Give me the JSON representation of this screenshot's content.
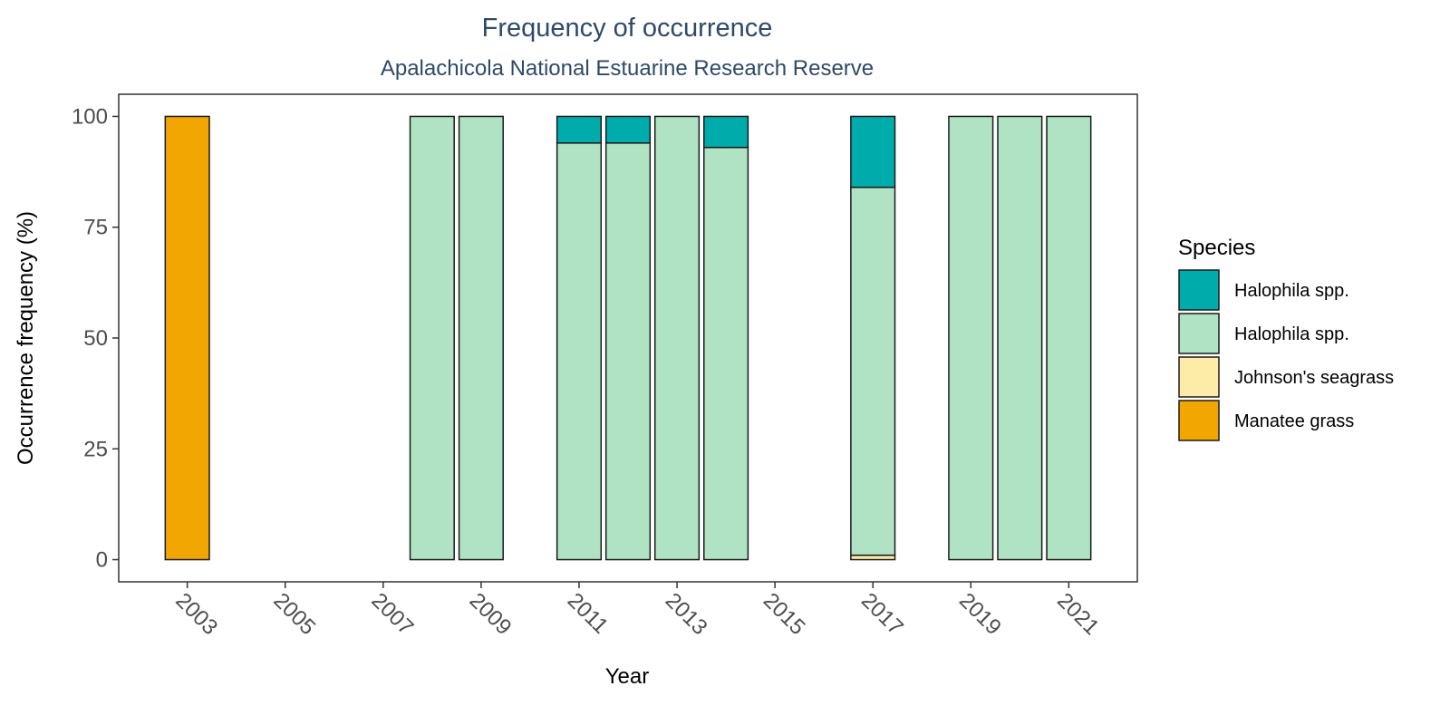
{
  "chart_data": {
    "type": "bar",
    "stacked": true,
    "title": "Frequency of occurrence",
    "subtitle": "Apalachicola National Estuarine Research Reserve",
    "xlabel": "Year",
    "ylabel": "Occurrence frequency (%)",
    "xlim": [
      2001.6,
      2022.4
    ],
    "ylim": [
      -5,
      105
    ],
    "x_ticks": [
      "2003",
      "2005",
      "2007",
      "2009",
      "2011",
      "2013",
      "2015",
      "2017",
      "2019",
      "2021"
    ],
    "y_ticks": [
      "0",
      "25",
      "50",
      "75",
      "100"
    ],
    "grid": false,
    "legend": {
      "title": "Species",
      "position": "right"
    },
    "series": [
      {
        "name": "Manatee grass",
        "color": "#F2A602",
        "values": [
          {
            "x": 2003,
            "y": 100
          }
        ]
      },
      {
        "name": "Johnson's seagrass",
        "color": "#FDEBA8",
        "values": [
          {
            "x": 2017,
            "y": 1
          }
        ]
      },
      {
        "name": "Halophila spp.",
        "color": "#AFE3C4",
        "values": [
          {
            "x": 2008,
            "y": 100
          },
          {
            "x": 2009,
            "y": 100
          },
          {
            "x": 2011,
            "y": 94
          },
          {
            "x": 2012,
            "y": 94
          },
          {
            "x": 2013,
            "y": 100
          },
          {
            "x": 2014,
            "y": 93
          },
          {
            "x": 2017,
            "y": 83
          },
          {
            "x": 2019,
            "y": 100
          },
          {
            "x": 2020,
            "y": 100
          },
          {
            "x": 2021,
            "y": 100
          }
        ]
      },
      {
        "name": "Halophila spp.",
        "color": "#00ABAB",
        "values": [
          {
            "x": 2011,
            "y": 6
          },
          {
            "x": 2012,
            "y": 6
          },
          {
            "x": 2014,
            "y": 7
          },
          {
            "x": 2017,
            "y": 16
          }
        ]
      }
    ],
    "legend_order": [
      3,
      2,
      1,
      0
    ],
    "colors": {
      "title": "#2F4A66",
      "axis_text": "#4D4D4D",
      "bar_outline": "#1A1A1A"
    }
  }
}
